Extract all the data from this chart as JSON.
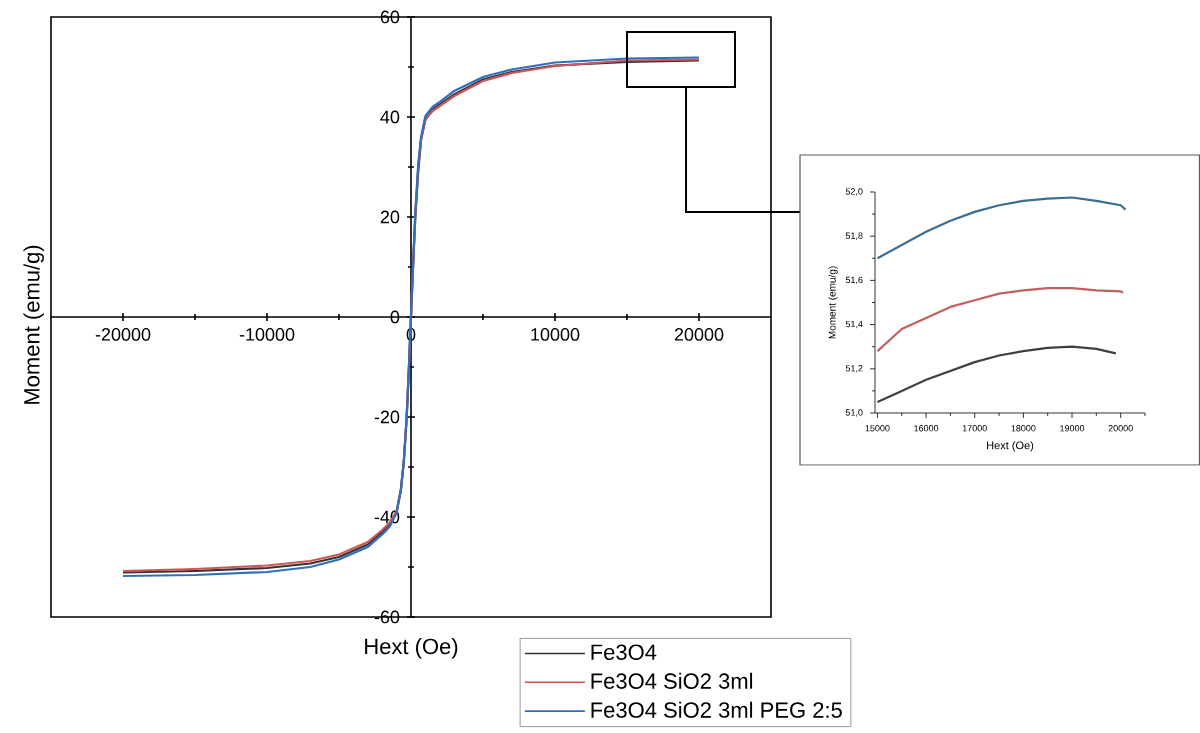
{
  "chart_data": [
    {
      "type": "line",
      "xlabel": "Hext (Oe)",
      "ylabel": "Moment (emu/g)",
      "legend": "bottom",
      "xlim": [
        -25000,
        25000
      ],
      "xticks": [
        -20000,
        {
          "value": -15000,
          "label": null
        },
        -10000,
        {
          "value": -5000,
          "label": null
        },
        0,
        {
          "value": 5000,
          "label": null
        },
        10000,
        {
          "value": 15000,
          "label": null
        },
        20000
      ],
      "ylim": [
        -60,
        60
      ],
      "yticks": [
        -60,
        {
          "value": -50,
          "label": null
        },
        -40,
        {
          "value": -30,
          "label": null
        },
        -20,
        {
          "value": -10,
          "label": null
        },
        0,
        {
          "value": 10,
          "label": null
        },
        20,
        {
          "value": 30,
          "label": null
        },
        40,
        {
          "value": 50,
          "label": null
        },
        60
      ],
      "series": [
        {
          "name": "Fe3O4",
          "color": "#333333",
          "x": [
            -20000,
            -15000,
            -10000,
            -7000,
            -5000,
            -3000,
            -2000,
            -1500,
            -1000,
            -700,
            -500,
            -300,
            -150,
            0,
            150,
            300,
            500,
            700,
            1000,
            1500,
            2000,
            3000,
            5000,
            7000,
            10000,
            15000,
            20000
          ],
          "values": [
            -51.1,
            -50.8,
            -50.2,
            -49.3,
            -48,
            -45.5,
            -43,
            -41.5,
            -39,
            -34.5,
            -29,
            -20,
            -10.5,
            0,
            10.5,
            20,
            29,
            35.5,
            39.5,
            41.5,
            42.5,
            44.5,
            47.5,
            49,
            50.3,
            51.0,
            51.3
          ]
        },
        {
          "name": "Fe3O4 SiO2 3ml",
          "color": "#d05555",
          "x": [
            -20000,
            -15000,
            -10000,
            -7000,
            -5000,
            -3000,
            -2000,
            -1500,
            -1000,
            -700,
            -500,
            -300,
            -150,
            0,
            150,
            300,
            500,
            700,
            1000,
            1500,
            2000,
            3000,
            5000,
            7000,
            10000,
            15000,
            20000
          ],
          "values": [
            -50.8,
            -50.4,
            -49.7,
            -48.8,
            -47.5,
            -45,
            -42.6,
            -41.2,
            -38.8,
            -34.5,
            -29,
            -20,
            -10.5,
            0,
            10.5,
            20.5,
            30,
            35.5,
            39.5,
            41.2,
            42.2,
            44.2,
            47.2,
            48.8,
            50.2,
            51.3,
            51.5
          ]
        },
        {
          "name": "Fe3O4 SiO2 3ml PEG 2:5",
          "color": "#2f6fbf",
          "x": [
            -20000,
            -15000,
            -10000,
            -7000,
            -5000,
            -3000,
            -2000,
            -1500,
            -1000,
            -700,
            -500,
            -300,
            -150,
            0,
            150,
            300,
            500,
            700,
            1000,
            1500,
            2000,
            3000,
            5000,
            7000,
            10000,
            15000,
            20000
          ],
          "values": [
            -51.8,
            -51.6,
            -51,
            -50,
            -48.5,
            -46,
            -43.5,
            -42,
            -39.2,
            -34.5,
            -29,
            -20,
            -10.2,
            0.5,
            11,
            21,
            30.5,
            36,
            40.2,
            42,
            43,
            45.2,
            48,
            49.5,
            50.9,
            51.7,
            51.9
          ]
        }
      ]
    },
    {
      "type": "line",
      "xlabel": "Hext (Oe)",
      "ylabel": "Moment (emu/g)",
      "xlim": [
        14950,
        20500
      ],
      "xticks": [
        15000,
        {
          "value": 15500,
          "label": null
        },
        16000,
        {
          "value": 16500,
          "label": null
        },
        17000,
        {
          "value": 17500,
          "label": null
        },
        18000,
        {
          "value": 18500,
          "label": null
        },
        19000,
        {
          "value": 19500,
          "label": null
        },
        20000,
        {
          "value": 20500,
          "label": null
        }
      ],
      "ylim": [
        51.0,
        52.0
      ],
      "yticks": [
        {
          "value": 51.0,
          "label": "51,0"
        },
        {
          "value": 51.1,
          "label": null
        },
        {
          "value": 51.2,
          "label": "51,2"
        },
        {
          "value": 51.3,
          "label": null
        },
        {
          "value": 51.4,
          "label": "51,4"
        },
        {
          "value": 51.5,
          "label": null
        },
        {
          "value": 51.6,
          "label": "51,6"
        },
        {
          "value": 51.7,
          "label": null
        },
        {
          "value": 51.8,
          "label": "51,8"
        },
        {
          "value": 51.9,
          "label": null
        },
        {
          "value": 52.0,
          "label": "52,0"
        }
      ],
      "series": [
        {
          "color": "#3a6f8f",
          "x": [
            15000,
            15500,
            16000,
            16500,
            17000,
            17500,
            18000,
            18500,
            19000,
            19500,
            20000,
            20100
          ],
          "values": [
            51.7,
            51.76,
            51.82,
            51.87,
            51.91,
            51.94,
            51.96,
            51.97,
            51.975,
            51.96,
            51.94,
            51.92
          ]
        },
        {
          "color": "#c06060",
          "x": [
            15000,
            15500,
            16000,
            16500,
            17000,
            17500,
            18000,
            18500,
            19000,
            19500,
            20000,
            20050
          ],
          "values": [
            51.28,
            51.38,
            51.43,
            51.48,
            51.51,
            51.54,
            51.555,
            51.565,
            51.565,
            51.555,
            51.55,
            51.545
          ]
        },
        {
          "color": "#404040",
          "x": [
            15000,
            15500,
            16000,
            16500,
            17000,
            17500,
            18000,
            18500,
            19000,
            19500,
            19900
          ],
          "values": [
            51.05,
            51.1,
            51.15,
            51.19,
            51.23,
            51.26,
            51.28,
            51.295,
            51.3,
            51.29,
            51.27
          ]
        }
      ]
    }
  ]
}
